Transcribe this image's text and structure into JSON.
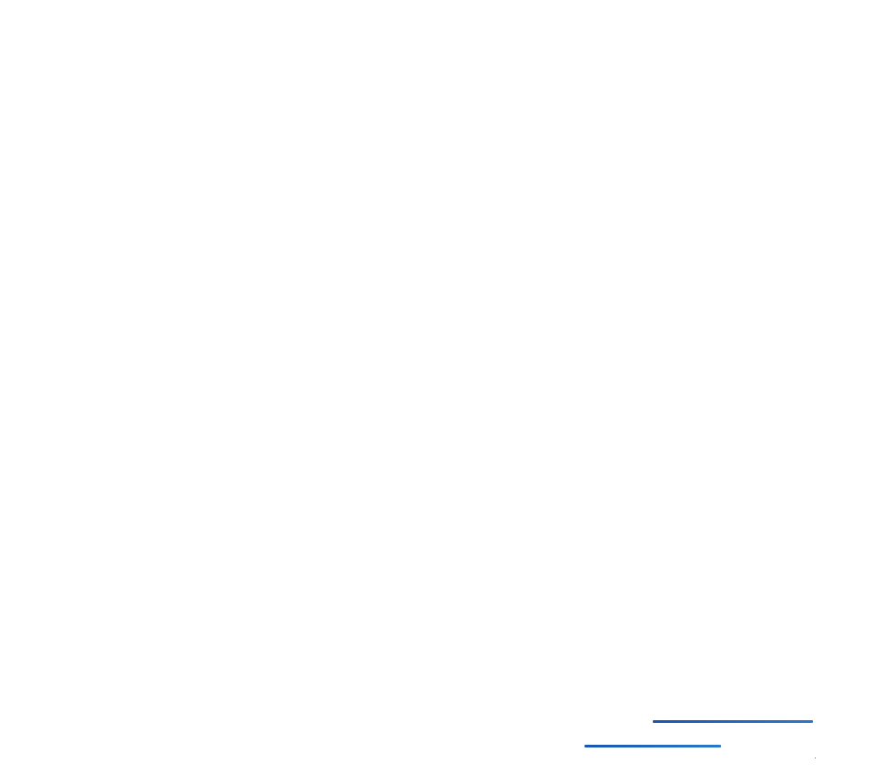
{
  "colors": {
    "background": "#ffffff",
    "link_start": "#1a56b0",
    "link_end": "#2a78c8"
  },
  "links": [
    {
      "id": "link-underline-1"
    },
    {
      "id": "link-underline-2"
    }
  ]
}
